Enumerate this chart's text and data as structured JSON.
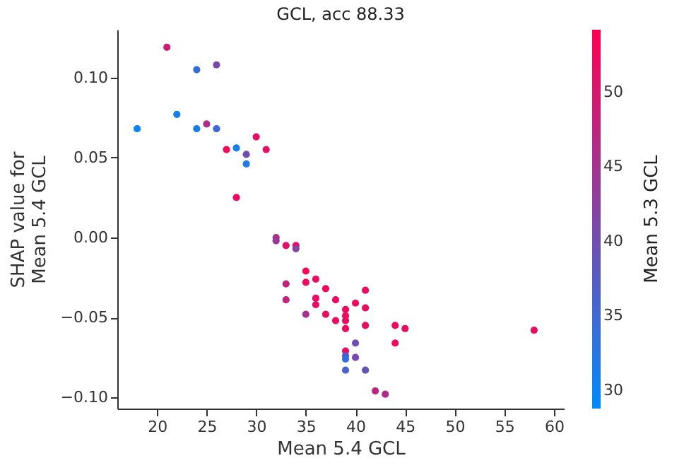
{
  "chart_data": {
    "type": "scatter",
    "title": "GCL, acc 88.33",
    "xlabel": "Mean 5.4 GCL",
    "ylabel": "SHAP value for\nMean 5.4 GCL",
    "clabel": "Mean 5.3 GCL",
    "x": [
      21,
      24,
      26,
      22,
      18,
      24,
      25,
      26,
      30,
      27,
      28,
      29,
      31,
      29,
      28,
      32,
      32,
      33,
      34,
      34,
      35,
      33,
      35,
      36,
      33,
      36,
      36,
      37,
      38,
      41,
      35,
      37,
      39,
      39,
      39,
      38,
      40,
      41,
      39,
      41,
      44,
      45,
      44,
      40,
      39,
      39,
      39,
      40,
      39,
      41,
      42,
      43,
      58
    ],
    "values": [
      0.119,
      0.105,
      0.108,
      0.077,
      0.068,
      0.068,
      0.071,
      0.068,
      0.063,
      0.055,
      0.056,
      0.052,
      0.055,
      0.046,
      0.025,
      0.0,
      -0.002,
      -0.005,
      -0.005,
      -0.007,
      -0.021,
      -0.029,
      -0.028,
      -0.026,
      -0.039,
      -0.038,
      -0.042,
      -0.032,
      -0.039,
      -0.033,
      -0.048,
      -0.048,
      -0.045,
      -0.049,
      -0.052,
      -0.052,
      -0.041,
      -0.044,
      -0.057,
      -0.055,
      -0.055,
      -0.057,
      -0.066,
      -0.066,
      -0.071,
      -0.074,
      -0.076,
      -0.075,
      -0.083,
      -0.083,
      -0.096,
      -0.098,
      -0.058
    ],
    "cvalues": [
      49,
      34,
      41,
      31,
      30,
      31,
      46,
      35,
      52,
      53,
      31,
      40,
      51,
      32,
      52,
      46,
      44,
      51,
      52,
      42,
      53,
      48,
      52,
      52,
      48,
      52,
      52,
      53,
      52,
      52,
      45,
      52,
      52,
      52,
      52,
      52,
      52,
      52,
      52,
      52,
      52,
      52,
      52,
      40,
      52,
      37,
      34,
      41,
      36,
      39,
      47,
      46,
      52
    ],
    "xlim": [
      16,
      61
    ],
    "xticks": [
      20,
      25,
      30,
      35,
      40,
      45,
      50,
      55,
      60
    ],
    "ylim": [
      -0.107,
      0.13
    ],
    "yticks": [
      {
        "value": -0.1,
        "label": "−0.10"
      },
      {
        "value": -0.05,
        "label": "−0.05"
      },
      {
        "value": 0,
        "label": "0.00"
      },
      {
        "value": 0.05,
        "label": "0.05"
      },
      {
        "value": 0.1,
        "label": "0.10"
      }
    ],
    "clim": [
      28.8,
      54.2
    ],
    "cticks": [
      30,
      35,
      40,
      45,
      50
    ],
    "marker": "circle",
    "grid": false
  }
}
